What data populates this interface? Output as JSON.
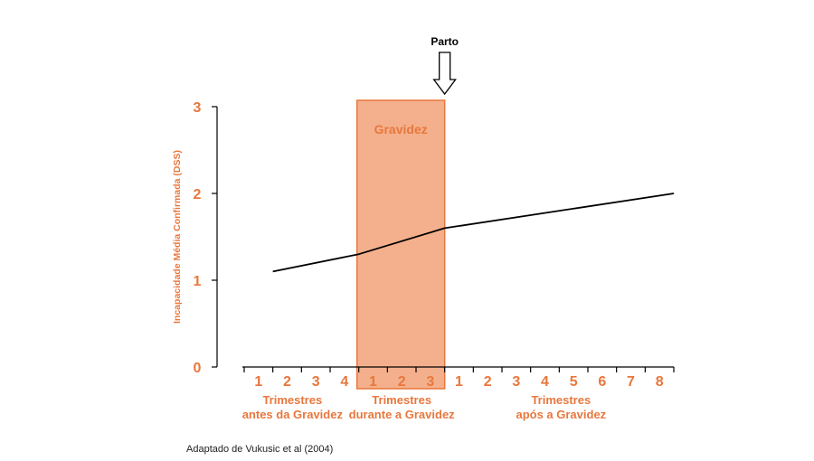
{
  "chart_data": {
    "type": "line",
    "ylabel": "Incapacidade Média Confirmada (DSS)",
    "ylim": [
      0,
      3
    ],
    "yticks": [
      "0",
      "1",
      "2",
      "3"
    ],
    "x_tick_labels": [
      "1",
      "2",
      "3",
      "4",
      "1",
      "2",
      "3",
      "1",
      "2",
      "3",
      "4",
      "5",
      "6",
      "7",
      "8"
    ],
    "groups": [
      {
        "line1": "Trimestres",
        "line2": "antes da Gravidez"
      },
      {
        "line1": "Trimestres",
        "line2": "durante a Gravidez"
      },
      {
        "line1": "Trimestres",
        "line2": "após a Gravidez"
      }
    ],
    "series": [
      {
        "x": [
          1,
          4,
          7,
          15
        ],
        "y": [
          1.1,
          1.3,
          1.6,
          2.0
        ]
      }
    ],
    "shaded_region": {
      "label": "Gravidez",
      "x_start": 4,
      "x_end": 7,
      "color": "#f4b08c"
    },
    "annotation": {
      "label": "Parto",
      "x": 7
    },
    "grid": false,
    "colors": {
      "axis_text": "#e8773d",
      "line": "#000000",
      "band_fill": "#f4b08c",
      "band_stroke": "#e8773d"
    }
  },
  "source_note": "Adaptado de Vukusic et al (2004)"
}
